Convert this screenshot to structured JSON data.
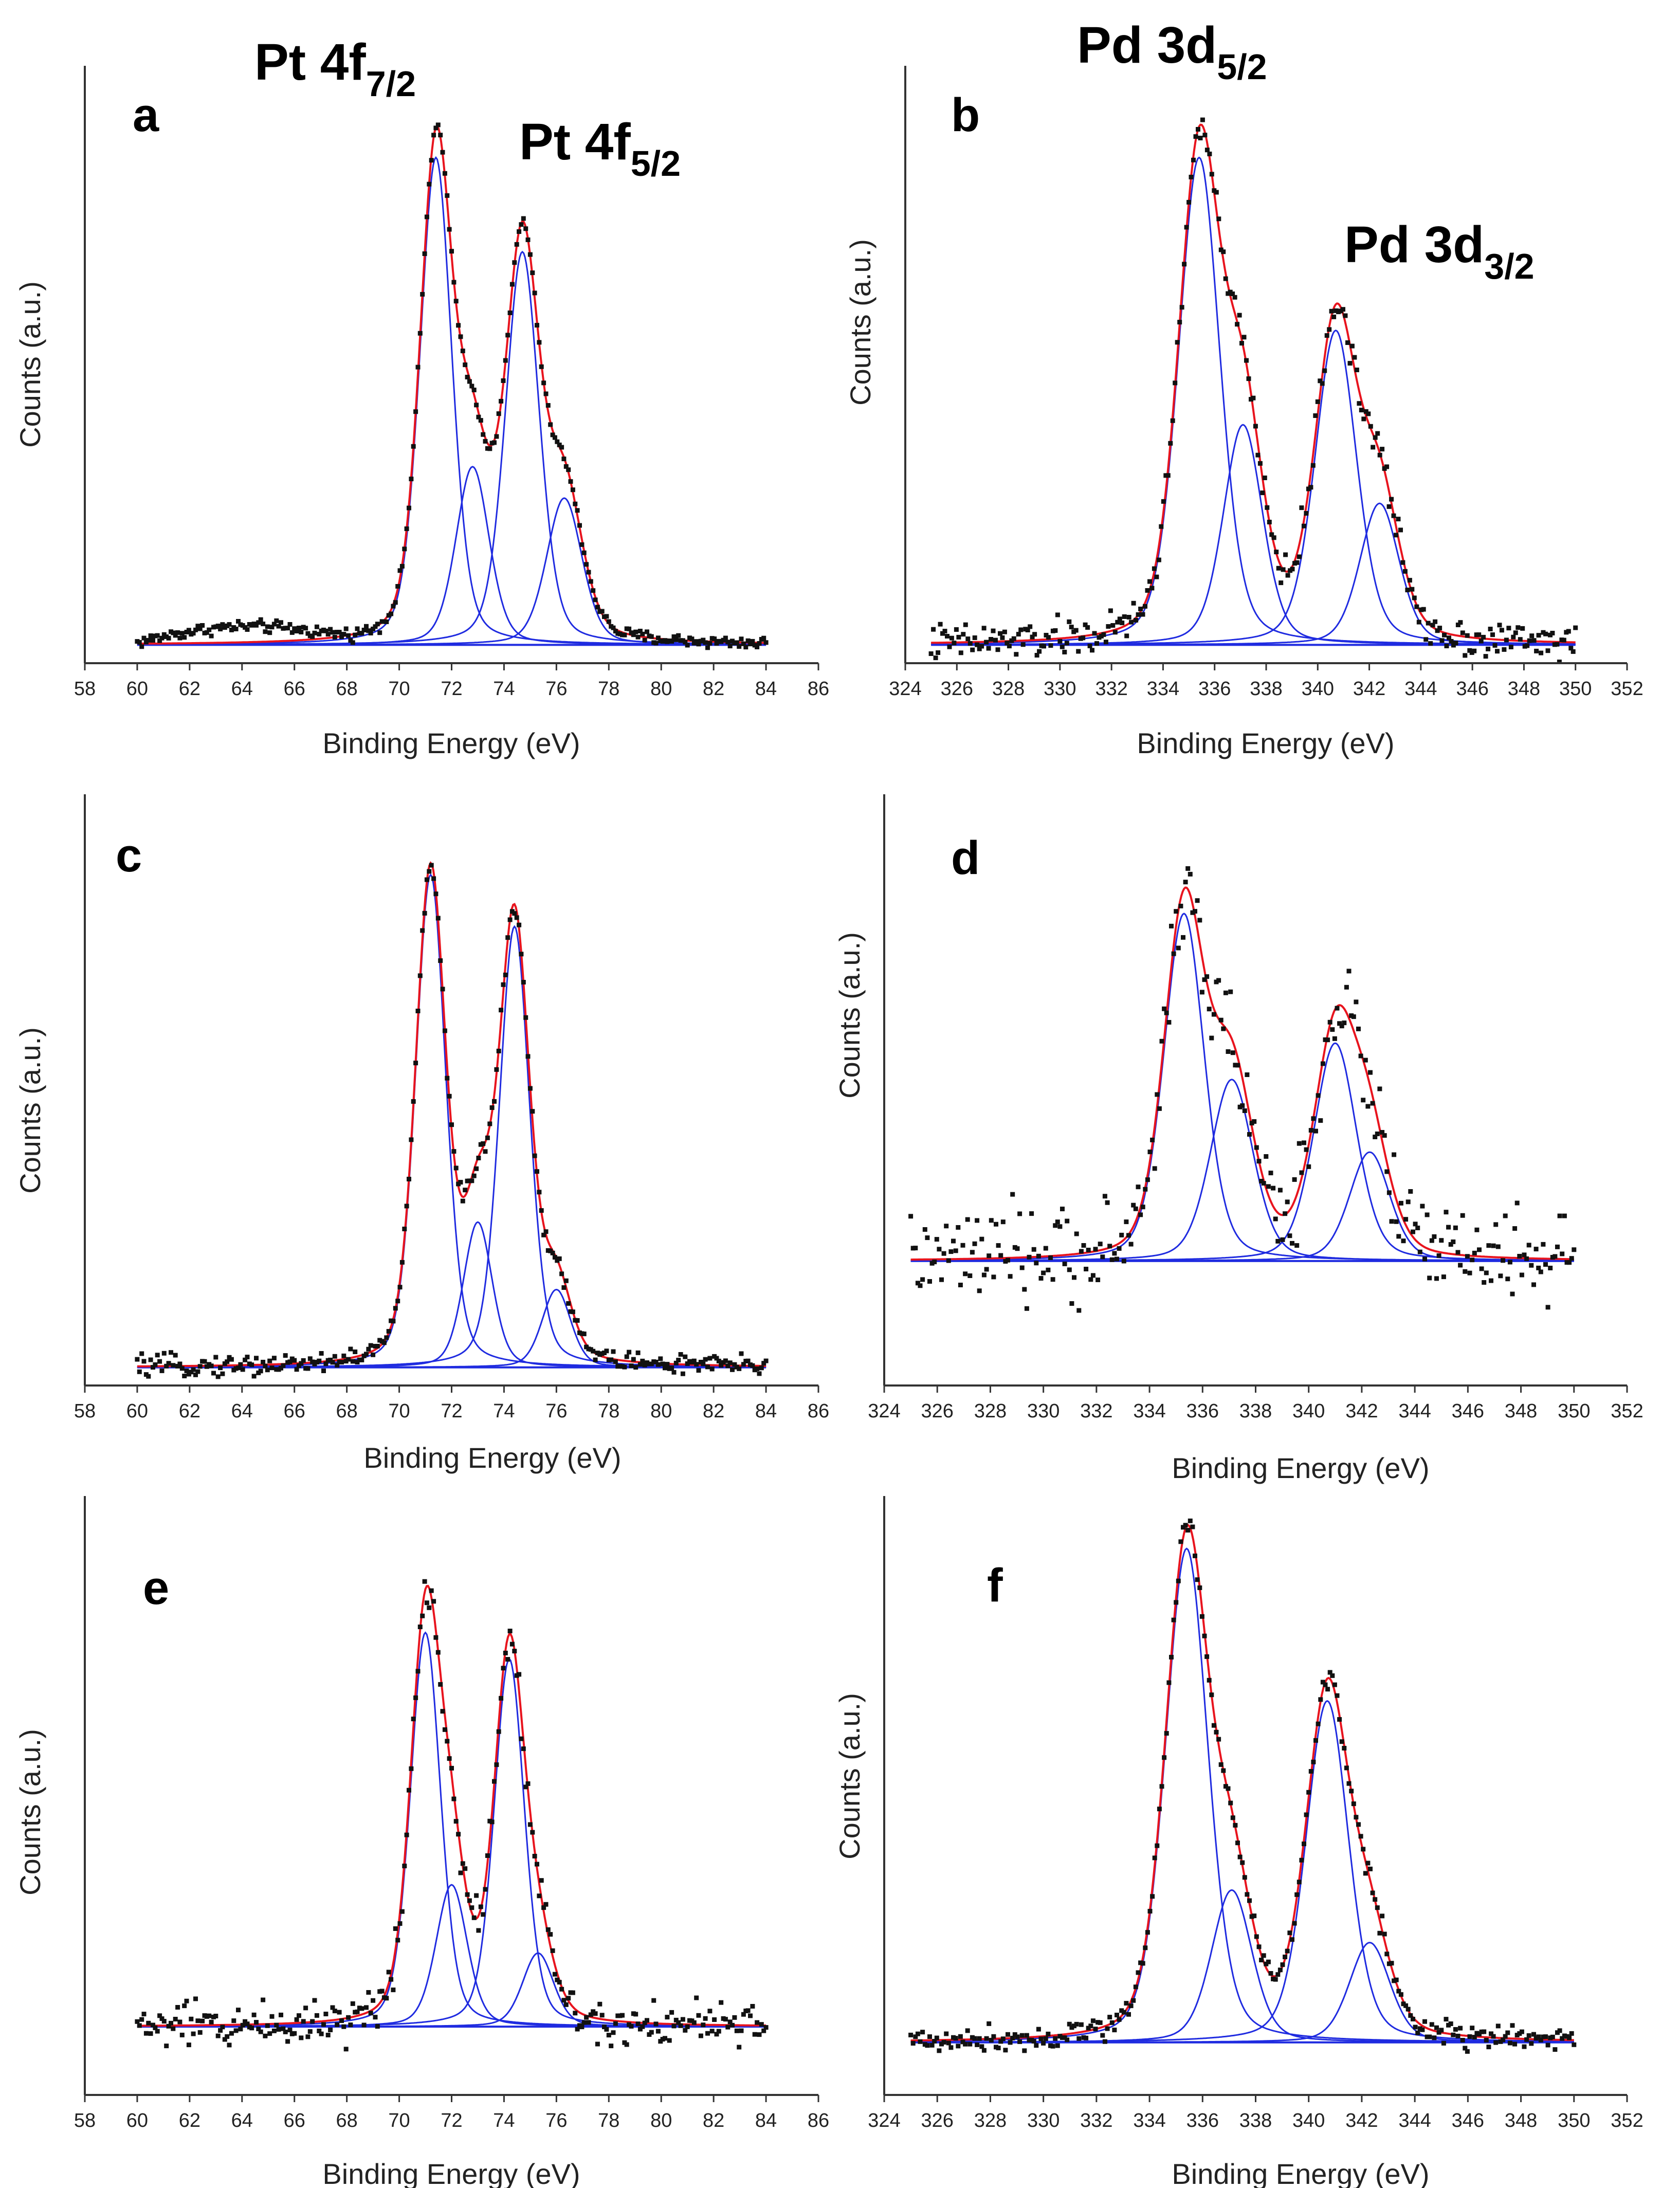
{
  "figure": {
    "panel_count": 6,
    "colors": {
      "fit": "#e8141e",
      "component": "#1f2be0",
      "data": "#111111",
      "axis": "#333333"
    }
  },
  "chart_data": [
    {
      "panel": "a",
      "type": "scatter",
      "title": "",
      "xlabel": "Binding Energy (eV)",
      "ylabel": "Counts (a.u.)",
      "xlim": [
        58,
        86
      ],
      "xticks": [
        58,
        60,
        62,
        64,
        66,
        68,
        70,
        72,
        74,
        76,
        78,
        80,
        82,
        84,
        86
      ],
      "ylim": [
        0,
        1.14
      ],
      "data_range": [
        60,
        84
      ],
      "baseline": 0.035,
      "noise": 0.006,
      "extra_bump": {
        "center": 64,
        "halfwidth": 4.2,
        "height": 0.03
      },
      "components": [
        {
          "center": 71.4,
          "height": 0.93,
          "width": 0.72
        },
        {
          "center": 72.8,
          "height": 0.34,
          "width": 0.75
        },
        {
          "center": 74.7,
          "height": 0.75,
          "width": 0.76
        },
        {
          "center": 76.3,
          "height": 0.28,
          "width": 0.8
        }
      ],
      "peak_labels": [
        {
          "main": "Pt 4f",
          "sub": "7/2"
        },
        {
          "main": "Pt 4f",
          "sub": "5/2"
        }
      ]
    },
    {
      "panel": "b",
      "type": "scatter",
      "title": "",
      "xlabel": "Binding Energy (eV)",
      "ylabel": "Counts (a.u.)",
      "xlim": [
        324,
        352
      ],
      "xticks": [
        324,
        326,
        328,
        330,
        332,
        334,
        336,
        338,
        340,
        342,
        344,
        346,
        348,
        350,
        352
      ],
      "ylim": [
        0,
        1.14
      ],
      "data_range": [
        325,
        350
      ],
      "baseline": 0.035,
      "noise": 0.018,
      "components": [
        {
          "center": 335.4,
          "height": 0.93,
          "width": 0.95
        },
        {
          "center": 337.1,
          "height": 0.42,
          "width": 0.9
        },
        {
          "center": 340.7,
          "height": 0.6,
          "width": 0.95
        },
        {
          "center": 342.4,
          "height": 0.27,
          "width": 0.9
        }
      ],
      "peak_labels": [
        {
          "main": "Pd 3d",
          "sub": "5/2"
        },
        {
          "main": "Pd 3d",
          "sub": "3/2"
        }
      ]
    },
    {
      "panel": "c",
      "type": "scatter",
      "title": "",
      "xlabel": "Binding Energy (eV)",
      "ylabel": "Counts (a.u.)",
      "xlim": [
        58,
        86
      ],
      "xticks": [
        58,
        60,
        62,
        64,
        66,
        68,
        70,
        72,
        74,
        76,
        78,
        80,
        82,
        84,
        86
      ],
      "ylim": [
        0,
        1.14
      ],
      "data_range": [
        60,
        84
      ],
      "baseline": 0.035,
      "noise": 0.01,
      "components": [
        {
          "center": 71.2,
          "height": 0.95,
          "width": 0.68
        },
        {
          "center": 73.0,
          "height": 0.28,
          "width": 0.65
        },
        {
          "center": 74.4,
          "height": 0.85,
          "width": 0.68
        },
        {
          "center": 76.0,
          "height": 0.15,
          "width": 0.65
        }
      ],
      "peak_labels": []
    },
    {
      "panel": "d",
      "type": "scatter",
      "title": "",
      "xlabel": "Binding Energy (eV)",
      "ylabel": "Counts (a.u.)",
      "xlim": [
        324,
        352
      ],
      "xticks": [
        324,
        326,
        328,
        330,
        332,
        334,
        336,
        338,
        340,
        342,
        344,
        346,
        348,
        350,
        352
      ],
      "ylim": [
        0,
        1.14
      ],
      "data_range": [
        325,
        350
      ],
      "baseline": 0.24,
      "noise": 0.045,
      "components": [
        {
          "center": 335.3,
          "height": 0.67,
          "width": 0.9
        },
        {
          "center": 337.1,
          "height": 0.35,
          "width": 0.95
        },
        {
          "center": 341.0,
          "height": 0.42,
          "width": 0.95
        },
        {
          "center": 342.3,
          "height": 0.21,
          "width": 0.9
        }
      ],
      "peak_labels": []
    },
    {
      "panel": "e",
      "type": "scatter",
      "title": "",
      "xlabel": "Binding Energy (eV)",
      "ylabel": "Counts (a.u.)",
      "xlim": [
        58,
        86
      ],
      "xticks": [
        58,
        60,
        62,
        64,
        66,
        68,
        70,
        72,
        74,
        76,
        78,
        80,
        82,
        84,
        86
      ],
      "ylim": [
        0,
        1.14
      ],
      "data_range": [
        60,
        84
      ],
      "baseline": 0.13,
      "noise": 0.022,
      "components": [
        {
          "center": 71.0,
          "height": 0.75,
          "width": 0.68
        },
        {
          "center": 72.0,
          "height": 0.27,
          "width": 0.7
        },
        {
          "center": 74.2,
          "height": 0.7,
          "width": 0.68
        },
        {
          "center": 75.3,
          "height": 0.14,
          "width": 0.7
        }
      ],
      "peak_labels": []
    },
    {
      "panel": "f",
      "type": "scatter",
      "title": "",
      "xlabel": "Binding Energy (eV)",
      "ylabel": "Counts (a.u.)",
      "xlim": [
        324,
        352
      ],
      "xticks": [
        324,
        326,
        328,
        330,
        332,
        334,
        336,
        338,
        340,
        342,
        344,
        346,
        348,
        350,
        352
      ],
      "ylim": [
        0,
        1.14
      ],
      "data_range": [
        325,
        350
      ],
      "baseline": 0.1,
      "noise": 0.012,
      "components": [
        {
          "center": 335.4,
          "height": 0.94,
          "width": 0.95
        },
        {
          "center": 337.1,
          "height": 0.29,
          "width": 0.9
        },
        {
          "center": 340.7,
          "height": 0.65,
          "width": 0.95
        },
        {
          "center": 342.3,
          "height": 0.19,
          "width": 0.9
        }
      ],
      "peak_labels": []
    }
  ]
}
